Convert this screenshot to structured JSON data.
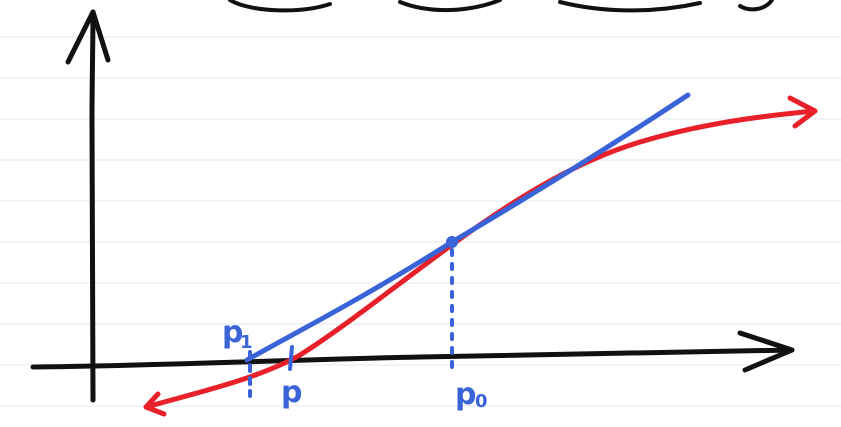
{
  "labels": {
    "p1": "p",
    "p1_sub": "1",
    "p": "p",
    "p0": "p",
    "p0_sub": "0"
  },
  "colors": {
    "paper": "#ffffff",
    "ruling": "#e6edf3",
    "axis": "#111111",
    "curve": "#e8202a",
    "tangent": "#3b63d8"
  }
}
